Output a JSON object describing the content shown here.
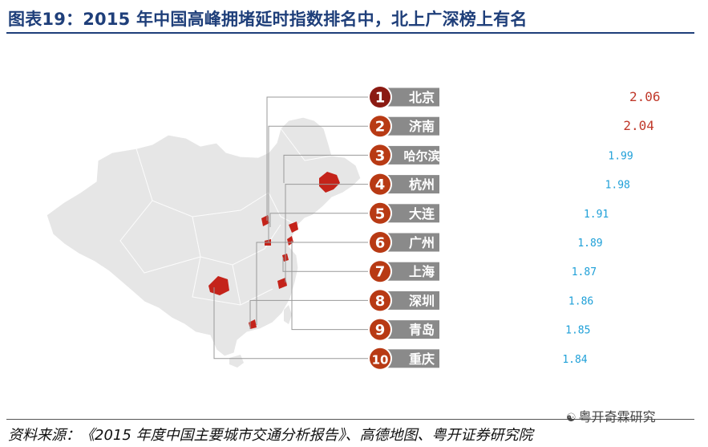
{
  "title": "图表19：2015 年中国高峰拥堵延时指数排名中，北上广深榜上有名",
  "source": "资料来源：《2015 年度中国主要城市交通分析报告》、高德地图、粤开证券研究院",
  "watermark": "粤开奇霖研究",
  "watermark_icon": "wechat-icon",
  "colors": {
    "title": "#1f3f7a",
    "rank_circle_top": "#8b1a12",
    "rank_circle_other": "#b83a14",
    "name_bar": "#8a8a8a",
    "car_top": "#e0726a",
    "car_other": "#5a5a5a",
    "value_top": "#c0392b",
    "value_other": "#1fa0d8",
    "map_land": "#e6e6e6",
    "map_city": "#c4231a",
    "leader_line": "#999999"
  },
  "chart_data": {
    "type": "bar",
    "title": "图表19：2015 年中国高峰拥堵延时指数排名中，北上广深榜上有名",
    "categories": [
      "北京",
      "济南",
      "哈尔滨",
      "杭州",
      "大连",
      "广州",
      "上海",
      "深圳",
      "青岛",
      "重庆"
    ],
    "ranks": [
      1,
      2,
      3,
      4,
      5,
      6,
      7,
      8,
      9,
      10
    ],
    "values": [
      2.06,
      2.04,
      1.99,
      1.98,
      1.91,
      1.89,
      1.87,
      1.86,
      1.85,
      1.84
    ],
    "value_labels": [
      "2.06",
      "2.04",
      "1.99",
      "1.98",
      "1.91",
      "1.89",
      "1.87",
      "1.86",
      "1.85",
      "1.84"
    ],
    "mark": "car-icon",
    "grid": false,
    "legend": "none"
  }
}
